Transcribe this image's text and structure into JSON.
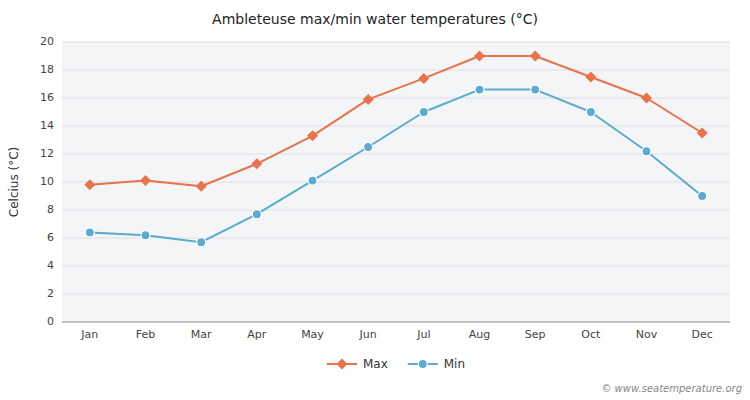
{
  "chart_data": {
    "type": "line",
    "title": "Ambleteuse max/min water temperatures (°C)",
    "ylabel": "Celcius (°C)",
    "categories": [
      "Jan",
      "Feb",
      "Mar",
      "Apr",
      "May",
      "Jun",
      "Jul",
      "Aug",
      "Sep",
      "Oct",
      "Nov",
      "Dec"
    ],
    "series": [
      {
        "name": "Max",
        "color": "#e8724a",
        "marker": "diamond",
        "values": [
          9.8,
          10.1,
          9.7,
          11.3,
          13.3,
          15.9,
          17.4,
          19.0,
          19.0,
          17.5,
          16.0,
          13.5
        ]
      },
      {
        "name": "Min",
        "color": "#5aabcf",
        "marker": "circle",
        "values": [
          6.4,
          6.2,
          5.7,
          7.7,
          10.1,
          12.5,
          15.0,
          16.6,
          16.6,
          15.0,
          12.2,
          9.0
        ]
      }
    ],
    "ylim": [
      0,
      20
    ],
    "yticks": [
      0,
      2,
      4,
      6,
      8,
      10,
      12,
      14,
      16,
      18,
      20
    ],
    "grid": true,
    "legend": "bottom",
    "annotations": [
      "© www.seatemperature.org"
    ]
  }
}
